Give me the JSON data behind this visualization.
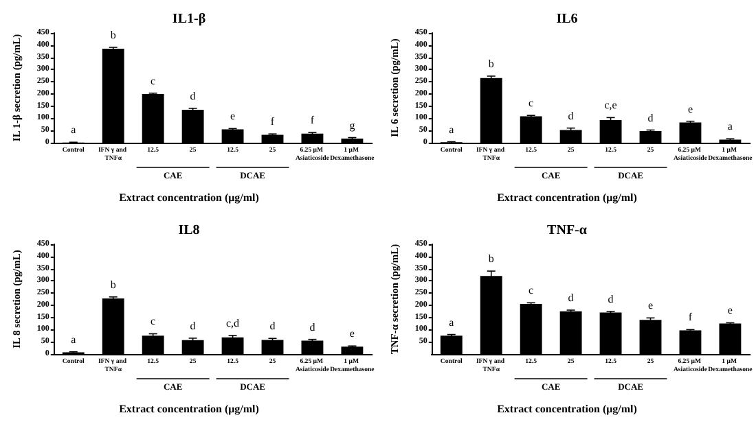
{
  "chart_data": [
    {
      "type": "bar",
      "title": "IL1-β",
      "ylabel": "IL 1-β secretion (pg/mL)",
      "xlabel": "Extract concentration (μg/ml)",
      "categories": [
        "Control",
        "IFN γ and TNFα",
        "12.5",
        "25",
        "12.5",
        "25",
        "6.25 μM Asiaticoside",
        "1 μM Dexamethasone"
      ],
      "color": "#000000",
      "values": [
        1,
        385,
        200,
        135,
        55,
        32,
        37,
        17
      ],
      "errors": [
        1,
        6,
        3,
        6,
        3,
        4,
        5,
        4
      ],
      "value_labels": [
        "a",
        "b",
        "c",
        "d",
        "e",
        "f",
        "f",
        "g"
      ],
      "annotations": [
        "CAE",
        "DCAE"
      ],
      "ylim": [
        0,
        450
      ],
      "yticks": [
        0,
        50,
        100,
        150,
        200,
        250,
        300,
        350,
        400,
        450
      ]
    },
    {
      "type": "bar",
      "title": "IL6",
      "ylabel": "IL 6 secretion (pg/mL)",
      "xlabel": "Extract concentration (μg/ml)",
      "categories": [
        "Control",
        "IFN γ and TNFα",
        "12.5",
        "25",
        "12.5",
        "25",
        "6.25 μM Asiaticoside",
        "1 μM Dexamethasone"
      ],
      "color": "#000000",
      "values": [
        2,
        265,
        108,
        52,
        93,
        48,
        83,
        13
      ],
      "errors": [
        2,
        8,
        4,
        8,
        10,
        4,
        5,
        3
      ],
      "value_labels": [
        "a",
        "b",
        "c",
        "d",
        "c,e",
        "d",
        "e",
        "a"
      ],
      "annotations": [
        "CAE",
        "DCAE"
      ],
      "ylim": [
        0,
        450
      ],
      "yticks": [
        0,
        50,
        100,
        150,
        200,
        250,
        300,
        350,
        400,
        450
      ]
    },
    {
      "type": "bar",
      "title": "IL8",
      "ylabel": "IL 8 secretion (pg/mL)",
      "xlabel": "Extract concentration (μg/ml)",
      "categories": [
        "Control",
        "IFN γ and TNFα",
        "12.5",
        "25",
        "12.5",
        "25",
        "6.25 μM Asiaticoside",
        "1 μM Dexamethasone"
      ],
      "color": "#000000",
      "values": [
        7,
        228,
        75,
        57,
        68,
        58,
        55,
        30
      ],
      "errors": [
        2,
        6,
        8,
        8,
        8,
        6,
        5,
        3
      ],
      "value_labels": [
        "a",
        "b",
        "c",
        "d",
        "c,d",
        "d",
        "d",
        "e"
      ],
      "annotations": [
        "CAE",
        "DCAE"
      ],
      "ylim": [
        0,
        450
      ],
      "yticks": [
        0,
        50,
        100,
        150,
        200,
        250,
        300,
        350,
        400,
        450
      ]
    },
    {
      "type": "bar",
      "title": "TNF-α",
      "ylabel": "TNF-α secretion (pg/mL)",
      "xlabel": "Extract concentration (μg/ml)",
      "categories": [
        "Control",
        "IFN γ and TNFα",
        "12.5",
        "25",
        "12.5",
        "25",
        "6.25 μM Asiaticoside",
        "1 μM Dexamethasone"
      ],
      "color": "#000000",
      "values": [
        75,
        320,
        205,
        175,
        170,
        140,
        97,
        125
      ],
      "errors": [
        5,
        20,
        5,
        5,
        5,
        8,
        3,
        3
      ],
      "value_labels": [
        "a",
        "b",
        "c",
        "d",
        "d",
        "e",
        "f",
        "e"
      ],
      "annotations": [
        "CAE",
        "DCAE"
      ],
      "ylim": [
        0,
        450
      ],
      "yticks": [
        50,
        100,
        150,
        200,
        250,
        300,
        350,
        400,
        450
      ]
    }
  ]
}
